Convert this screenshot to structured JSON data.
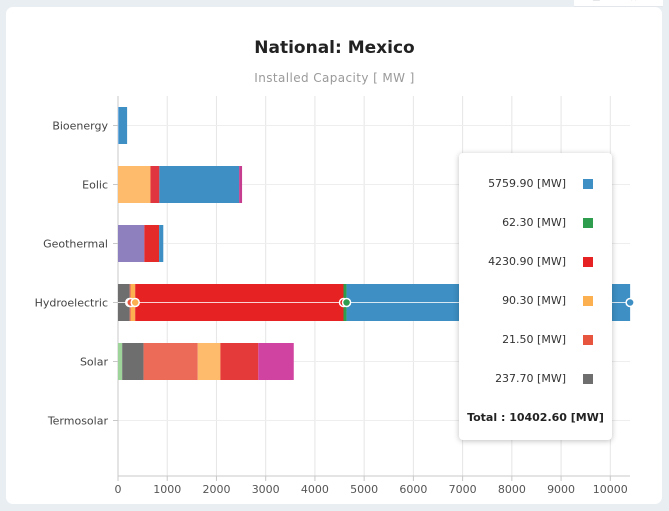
{
  "header": {
    "title": "National: Mexico",
    "subtitle": "Installed Capacity [ MW ]"
  },
  "chart_data": {
    "type": "bar",
    "orientation": "horizontal",
    "stacked": true,
    "title": "National: Mexico",
    "subtitle": "Installed Capacity [ MW ]",
    "categories": [
      "Bioenergy",
      "Eolic",
      "Geothermal",
      "Hydroelectric",
      "Solar",
      "Termosolar"
    ],
    "xlim": [
      0,
      10400
    ],
    "xticks": [
      0,
      1000,
      2000,
      3000,
      4000,
      5000,
      6000,
      7000,
      8000,
      9000,
      10000
    ],
    "grid": true,
    "bars": [
      {
        "category": "Bioenergy",
        "segments": [
          {
            "value": 15,
            "color": "#6ba4e0"
          },
          {
            "value": 170,
            "color": "#3d8fc4"
          }
        ]
      },
      {
        "category": "Eolic",
        "segments": [
          {
            "value": 660,
            "color": "#fdbb6b"
          },
          {
            "value": 180,
            "color": "#e0363f"
          },
          {
            "value": 1620,
            "color": "#3d8fc4"
          },
          {
            "value": 60,
            "color": "#c63d8f"
          }
        ]
      },
      {
        "category": "Geothermal",
        "segments": [
          {
            "value": 535,
            "color": "#8e7fbf"
          },
          {
            "value": 300,
            "color": "#e52a2a"
          },
          {
            "value": 85,
            "color": "#3d8fc4"
          }
        ]
      },
      {
        "category": "Hydroelectric",
        "segments": [
          {
            "value": 237.7,
            "color": "#6e6e6e"
          },
          {
            "value": 21.5,
            "color": "#e8553e"
          },
          {
            "value": 90.3,
            "color": "#fdb04f"
          },
          {
            "value": 4230.9,
            "color": "#e62222"
          },
          {
            "value": 62.3,
            "color": "#2e9e4e"
          },
          {
            "value": 5759.9,
            "color": "#3d8fc4"
          }
        ]
      },
      {
        "category": "Solar",
        "segments": [
          {
            "value": 85,
            "color": "#9ed39a"
          },
          {
            "value": 435,
            "color": "#6e6e6e"
          },
          {
            "value": 1100,
            "color": "#ec6a58"
          },
          {
            "value": 460,
            "color": "#fdbb6b"
          },
          {
            "value": 770,
            "color": "#e53a3a"
          },
          {
            "value": 720,
            "color": "#d043a0"
          }
        ]
      },
      {
        "category": "Termosolar",
        "segments": []
      }
    ],
    "hover": {
      "category": "Hydroelectric"
    }
  },
  "tooltip": {
    "rows": [
      {
        "label": "5759.90 [MW]",
        "color": "#3d8fc4"
      },
      {
        "label": "62.30 [MW]",
        "color": "#2e9e4e"
      },
      {
        "label": "4230.90 [MW]",
        "color": "#e62222"
      },
      {
        "label": "90.30 [MW]",
        "color": "#fdb04f"
      },
      {
        "label": "21.50 [MW]",
        "color": "#e8553e"
      },
      {
        "label": "237.70 [MW]",
        "color": "#6e6e6e"
      }
    ],
    "total": "Total : 10402.60 [MW]"
  }
}
